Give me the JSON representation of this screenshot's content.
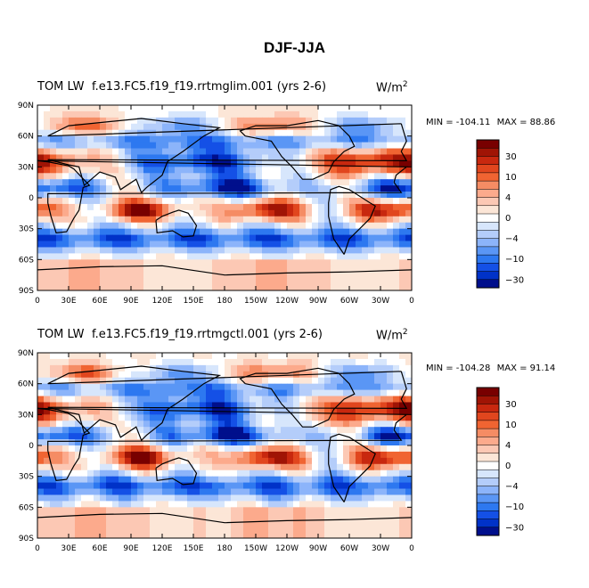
{
  "main_title": "DJF-JJA",
  "panels": [
    {
      "left_title": "TOM LW",
      "center_title": "f.e13.FC5.f19_f19.rrtmglim.001 (yrs 2-6)",
      "units_text": "W/m",
      "units_exp": "2",
      "min_label": "MIN = -104.11",
      "max_label": "MAX =  88.86"
    },
    {
      "left_title": "TOM LW",
      "center_title": "f.e13.FC5.f19_f19.rrtmgctl.001 (yrs 2-6)",
      "units_text": "W/m",
      "units_exp": "2",
      "min_label": "MIN = -104.28",
      "max_label": "MAX =  91.14"
    }
  ],
  "colors": {
    "scale": [
      "#000f8c",
      "#0032c8",
      "#1450e6",
      "#2d78f0",
      "#5a96f5",
      "#8cb4fa",
      "#b4cdfa",
      "#d7e6fc",
      "#ffffff",
      "#fce6d7",
      "#fcc8b4",
      "#fcaa8c",
      "#f58c64",
      "#f06432",
      "#e1461e",
      "#c8280f",
      "#a01405",
      "#780000"
    ]
  },
  "chart_data": [
    {
      "type": "heatmap",
      "title": "DJF-JJA",
      "subtitle": "f.e13.FC5.f19_f19.rrtmglim.001 (yrs 2-6)",
      "variable": "TOM LW",
      "units": "W/m2",
      "x_ticks": [
        "0",
        "30E",
        "60E",
        "90E",
        "120E",
        "150E",
        "180",
        "150W",
        "120W",
        "90W",
        "60W",
        "30W",
        "0"
      ],
      "y_ticks": [
        "90N",
        "60N",
        "30N",
        "0",
        "30S",
        "60S",
        "90S"
      ],
      "colorbar_labels": [
        "30",
        "10",
        "4",
        "0",
        "-4",
        "-10",
        "-30"
      ],
      "min": -104.11,
      "max": 88.86
    },
    {
      "type": "heatmap",
      "title": "DJF-JJA",
      "subtitle": "f.e13.FC5.f19_f19.rrtmgctl.001 (yrs 2-6)",
      "variable": "TOM LW",
      "units": "W/m2",
      "x_ticks": [
        "0",
        "30E",
        "60E",
        "90E",
        "120E",
        "150E",
        "180",
        "150W",
        "120W",
        "90W",
        "60W",
        "30W",
        "0"
      ],
      "y_ticks": [
        "90N",
        "60N",
        "30N",
        "0",
        "30S",
        "60S",
        "90S"
      ],
      "colorbar_labels": [
        "30",
        "10",
        "4",
        "0",
        "-4",
        "-10",
        "-30"
      ],
      "min": -104.28,
      "max": 91.14
    }
  ]
}
